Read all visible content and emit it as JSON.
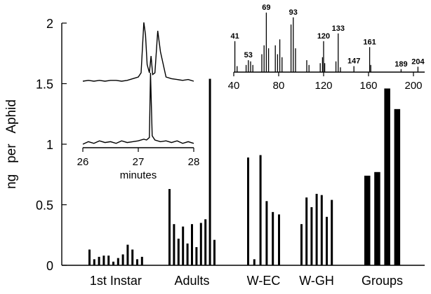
{
  "chart_data": [
    {
      "type": "bar",
      "ylabel": "ng   per   Aphid",
      "ylim": [
        0,
        2
      ],
      "yticks": [
        0,
        0.5,
        1,
        1.5,
        2
      ],
      "ytick_labels": [
        "0",
        "0.5",
        "1",
        "1.5",
        "2"
      ],
      "groups": [
        {
          "label": "1st Instar",
          "values": [
            0.13,
            0.05,
            0.07,
            0.08,
            0.08,
            0.03,
            0.06,
            0.09,
            0.17,
            0.13,
            0.05,
            0.07
          ]
        },
        {
          "label": "Adults",
          "values": [
            0.63,
            0.34,
            0.22,
            0.32,
            0.18,
            0.34,
            0.15,
            0.35,
            0.38,
            1.54,
            0.21
          ]
        },
        {
          "label": "W-EC",
          "values": [
            0.89,
            0.05,
            0.91,
            0.53,
            0.44,
            0.42
          ]
        },
        {
          "label": "W-GH",
          "values": [
            0.34,
            0.56,
            0.48,
            0.59,
            0.58,
            0.4,
            0.54
          ]
        },
        {
          "label": "Groups",
          "values": [
            0.74,
            0.77,
            1.46,
            1.29
          ]
        }
      ],
      "bar_color": "#000000"
    },
    {
      "type": "line",
      "xlabel": "minutes",
      "xlim": [
        26,
        28
      ],
      "xticks": [
        26,
        27,
        28
      ],
      "xtick_labels": [
        "26",
        "27",
        "28"
      ],
      "series": [
        {
          "x": [
            26.0,
            26.1,
            26.2,
            26.3,
            26.4,
            26.5,
            26.6,
            26.7,
            26.8,
            26.9,
            27.0,
            27.05,
            27.1,
            27.13,
            27.16,
            27.2,
            27.23,
            27.26,
            27.3,
            27.35,
            27.4,
            27.5,
            27.6,
            27.7,
            27.8,
            27.9,
            28.0
          ],
          "y": [
            0.0,
            0.01,
            0.0,
            0.01,
            0.0,
            0.01,
            0.01,
            0.0,
            0.01,
            0.03,
            0.05,
            0.1,
            0.7,
            0.55,
            0.2,
            0.1,
            0.3,
            0.08,
            0.1,
            0.6,
            0.35,
            0.05,
            0.03,
            0.02,
            0.01,
            0.02,
            0.0
          ]
        },
        {
          "x": [
            26.0,
            26.1,
            26.2,
            26.3,
            26.4,
            26.5,
            26.6,
            26.7,
            26.8,
            26.9,
            27.0,
            27.1,
            27.15,
            27.2,
            27.22,
            27.25,
            27.3,
            27.4,
            27.5,
            27.6,
            27.7,
            27.8,
            27.9,
            28.0
          ],
          "y": [
            0.0,
            0.03,
            0.01,
            0.04,
            0.02,
            0.03,
            0.01,
            0.04,
            0.02,
            0.03,
            0.04,
            0.06,
            0.05,
            0.08,
            0.85,
            0.1,
            0.05,
            0.03,
            0.04,
            0.02,
            0.04,
            0.01,
            0.03,
            0.01
          ]
        }
      ]
    },
    {
      "type": "bar",
      "xlim": [
        40,
        210
      ],
      "xticks": [
        40,
        80,
        120,
        160,
        200
      ],
      "xtick_labels": [
        "40",
        "80",
        "120",
        "160",
        "200"
      ],
      "x": [
        41,
        43,
        51,
        53,
        55,
        57,
        65,
        67,
        69,
        71,
        77,
        79,
        81,
        83,
        91,
        93,
        95,
        105,
        107,
        117,
        119,
        120,
        121,
        131,
        133,
        135,
        147,
        161,
        162,
        189,
        204
      ],
      "values": [
        52,
        10,
        12,
        20,
        18,
        12,
        30,
        45,
        100,
        40,
        45,
        30,
        55,
        25,
        80,
        92,
        40,
        20,
        12,
        15,
        25,
        52,
        15,
        18,
        65,
        8,
        10,
        42,
        12,
        5,
        9
      ],
      "labels": [
        {
          "x": 41,
          "text": "41"
        },
        {
          "x": 53,
          "text": "53"
        },
        {
          "x": 69,
          "text": "69"
        },
        {
          "x": 93,
          "text": "93"
        },
        {
          "x": 120,
          "text": "120"
        },
        {
          "x": 133,
          "text": "133"
        },
        {
          "x": 147,
          "text": "147"
        },
        {
          "x": 161,
          "text": "161"
        },
        {
          "x": 189,
          "text": "189"
        },
        {
          "x": 204,
          "text": "204"
        }
      ]
    }
  ]
}
